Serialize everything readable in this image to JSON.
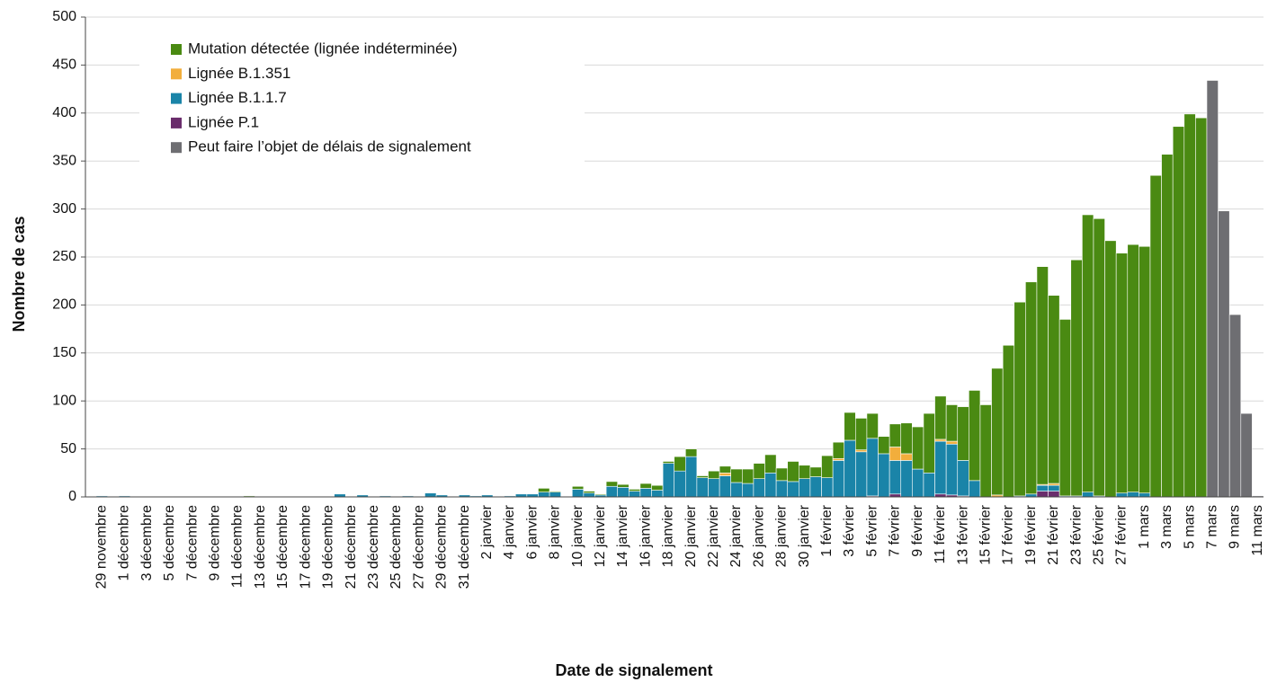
{
  "chart_data": {
    "type": "stacked_bar",
    "x_label": "Date de signalement",
    "y_label": "Nombre de cas",
    "ylim": [
      0,
      500
    ],
    "yticks": [
      0,
      50,
      100,
      150,
      200,
      250,
      300,
      350,
      400,
      450,
      500
    ],
    "grid": true,
    "legend": "top-left",
    "categories": [
      "29 novembre",
      null,
      "1 décembre",
      null,
      "3 décembre",
      null,
      "5 décembre",
      null,
      "7 décembre",
      null,
      "9 décembre",
      null,
      "11 décembre",
      null,
      "13 décembre",
      null,
      "15 décembre",
      null,
      "17 décembre",
      null,
      "19 décembre",
      null,
      "21 décembre",
      null,
      "23 décembre",
      null,
      "25 décembre",
      null,
      "27 décembre",
      null,
      "29 décembre",
      null,
      "31 décembre",
      null,
      "2 janvier",
      null,
      "4 janvier",
      null,
      "6 janvier",
      null,
      "8 janvier",
      null,
      "10 janvier",
      null,
      "12 janvier",
      null,
      "14 janvier",
      null,
      "16 janvier",
      null,
      "18 janvier",
      null,
      "20 janvier",
      null,
      "22 janvier",
      null,
      "24 janvier",
      null,
      "26 janvier",
      null,
      "28 janvier",
      null,
      "30 janvier",
      null,
      "1 février",
      null,
      "3 février",
      null,
      "5 février",
      null,
      "7 février",
      null,
      "9 février",
      null,
      "11 février",
      null,
      "13 février",
      null,
      "15 février",
      null,
      "17 février",
      null,
      "19 février",
      null,
      "21 février",
      null,
      "23 février",
      null,
      "25 février",
      null,
      "27 février",
      null,
      "1 mars",
      null,
      "3 mars",
      null,
      "5 mars",
      null,
      "7 mars",
      null,
      "9 mars",
      null,
      "11 mars"
    ],
    "series": [
      {
        "name": "Mutation détectée (lignée indéterminée)",
        "color": "#4a8a12",
        "values": [
          0,
          0,
          0,
          0,
          0,
          0,
          0,
          0,
          0,
          0,
          0,
          0,
          0,
          1,
          0,
          0,
          0,
          0,
          0,
          0,
          0,
          0,
          0,
          0,
          0,
          0,
          0,
          0,
          0,
          0,
          0,
          0,
          0,
          0,
          0,
          0,
          0,
          0,
          0,
          4,
          1,
          0,
          3,
          2,
          1,
          5,
          3,
          2,
          5,
          5,
          2,
          15,
          8,
          2,
          8,
          7,
          14,
          15,
          16,
          19,
          13,
          21,
          14,
          10,
          23,
          17,
          29,
          33,
          26,
          18,
          24,
          32,
          44,
          62,
          45,
          38,
          56,
          94,
          96,
          132,
          158,
          202,
          221,
          227,
          196,
          184,
          246,
          289,
          289,
          267,
          250,
          258,
          257,
          335,
          357,
          386,
          399,
          395,
          0,
          0,
          0,
          0,
          0
        ]
      },
      {
        "name": "Lignée B.1.351",
        "color": "#f2ae3c",
        "values": [
          0,
          0,
          0,
          0,
          0,
          0,
          0,
          0,
          0,
          0,
          0,
          0,
          0,
          0,
          0,
          0,
          0,
          0,
          0,
          0,
          0,
          0,
          0,
          0,
          0,
          0,
          0,
          0,
          0,
          0,
          0,
          0,
          0,
          0,
          0,
          0,
          0,
          0,
          0,
          0,
          0,
          0,
          0,
          0,
          0,
          0,
          0,
          0,
          0,
          0,
          0,
          0,
          0,
          0,
          0,
          3,
          0,
          0,
          0,
          0,
          0,
          0,
          0,
          0,
          0,
          2,
          0,
          2,
          0,
          0,
          14,
          7,
          0,
          0,
          2,
          3,
          0,
          0,
          0,
          2,
          0,
          0,
          0,
          1,
          2,
          0,
          0,
          0,
          0,
          0,
          0,
          0,
          0,
          0,
          0,
          0,
          0,
          0,
          0,
          0,
          0,
          0,
          0
        ]
      },
      {
        "name": "Lignée B.1.1.7",
        "color": "#1a84a8",
        "values": [
          1,
          0,
          1,
          0,
          0,
          0,
          0,
          0,
          0,
          0,
          0,
          0,
          0,
          0,
          0,
          0,
          0,
          0,
          0,
          0,
          0,
          3,
          0,
          2,
          0,
          1,
          0,
          1,
          0,
          4,
          2,
          0,
          2,
          1,
          2,
          0,
          1,
          3,
          3,
          5,
          5,
          0,
          8,
          4,
          2,
          11,
          10,
          6,
          9,
          7,
          35,
          27,
          42,
          20,
          19,
          22,
          15,
          14,
          19,
          25,
          17,
          16,
          19,
          21,
          20,
          38,
          59,
          47,
          60,
          45,
          35,
          38,
          29,
          25,
          55,
          53,
          37,
          17,
          0,
          0,
          0,
          1,
          3,
          6,
          6,
          1,
          1,
          5,
          1,
          0,
          4,
          5,
          4,
          0,
          0,
          0,
          0,
          0,
          0,
          0,
          0,
          0,
          0
        ]
      },
      {
        "name": "Lignée P.1",
        "color": "#6a2d6c",
        "values": [
          0,
          0,
          0,
          0,
          0,
          0,
          0,
          0,
          0,
          0,
          0,
          0,
          0,
          0,
          0,
          0,
          0,
          0,
          0,
          0,
          0,
          0,
          0,
          0,
          0,
          0,
          0,
          0,
          0,
          0,
          0,
          0,
          0,
          0,
          0,
          0,
          0,
          0,
          0,
          0,
          0,
          0,
          0,
          0,
          0,
          0,
          0,
          0,
          0,
          0,
          0,
          0,
          0,
          0,
          0,
          0,
          0,
          0,
          0,
          0,
          0,
          0,
          0,
          0,
          0,
          0,
          0,
          0,
          1,
          0,
          3,
          0,
          0,
          0,
          3,
          2,
          1,
          0,
          0,
          0,
          0,
          0,
          0,
          6,
          6,
          0,
          0,
          0,
          0,
          0,
          0,
          0,
          0,
          0,
          0,
          0,
          0,
          0,
          0,
          0,
          0,
          0,
          0
        ]
      },
      {
        "name": "Peut faire l’objet de délais de signalement",
        "color": "#6e6e72",
        "values": [
          0,
          0,
          0,
          0,
          0,
          0,
          0,
          0,
          0,
          0,
          0,
          0,
          0,
          0,
          0,
          0,
          0,
          0,
          0,
          0,
          0,
          0,
          0,
          0,
          0,
          0,
          0,
          0,
          0,
          0,
          0,
          0,
          0,
          0,
          0,
          0,
          0,
          0,
          0,
          0,
          0,
          0,
          0,
          0,
          0,
          0,
          0,
          0,
          0,
          0,
          0,
          0,
          0,
          0,
          0,
          0,
          0,
          0,
          0,
          0,
          0,
          0,
          0,
          0,
          0,
          0,
          0,
          0,
          0,
          0,
          0,
          0,
          0,
          0,
          0,
          0,
          0,
          0,
          0,
          0,
          0,
          0,
          0,
          0,
          0,
          0,
          0,
          0,
          0,
          0,
          0,
          0,
          0,
          0,
          0,
          0,
          0,
          0,
          434,
          298,
          190,
          87,
          1
        ]
      }
    ]
  }
}
